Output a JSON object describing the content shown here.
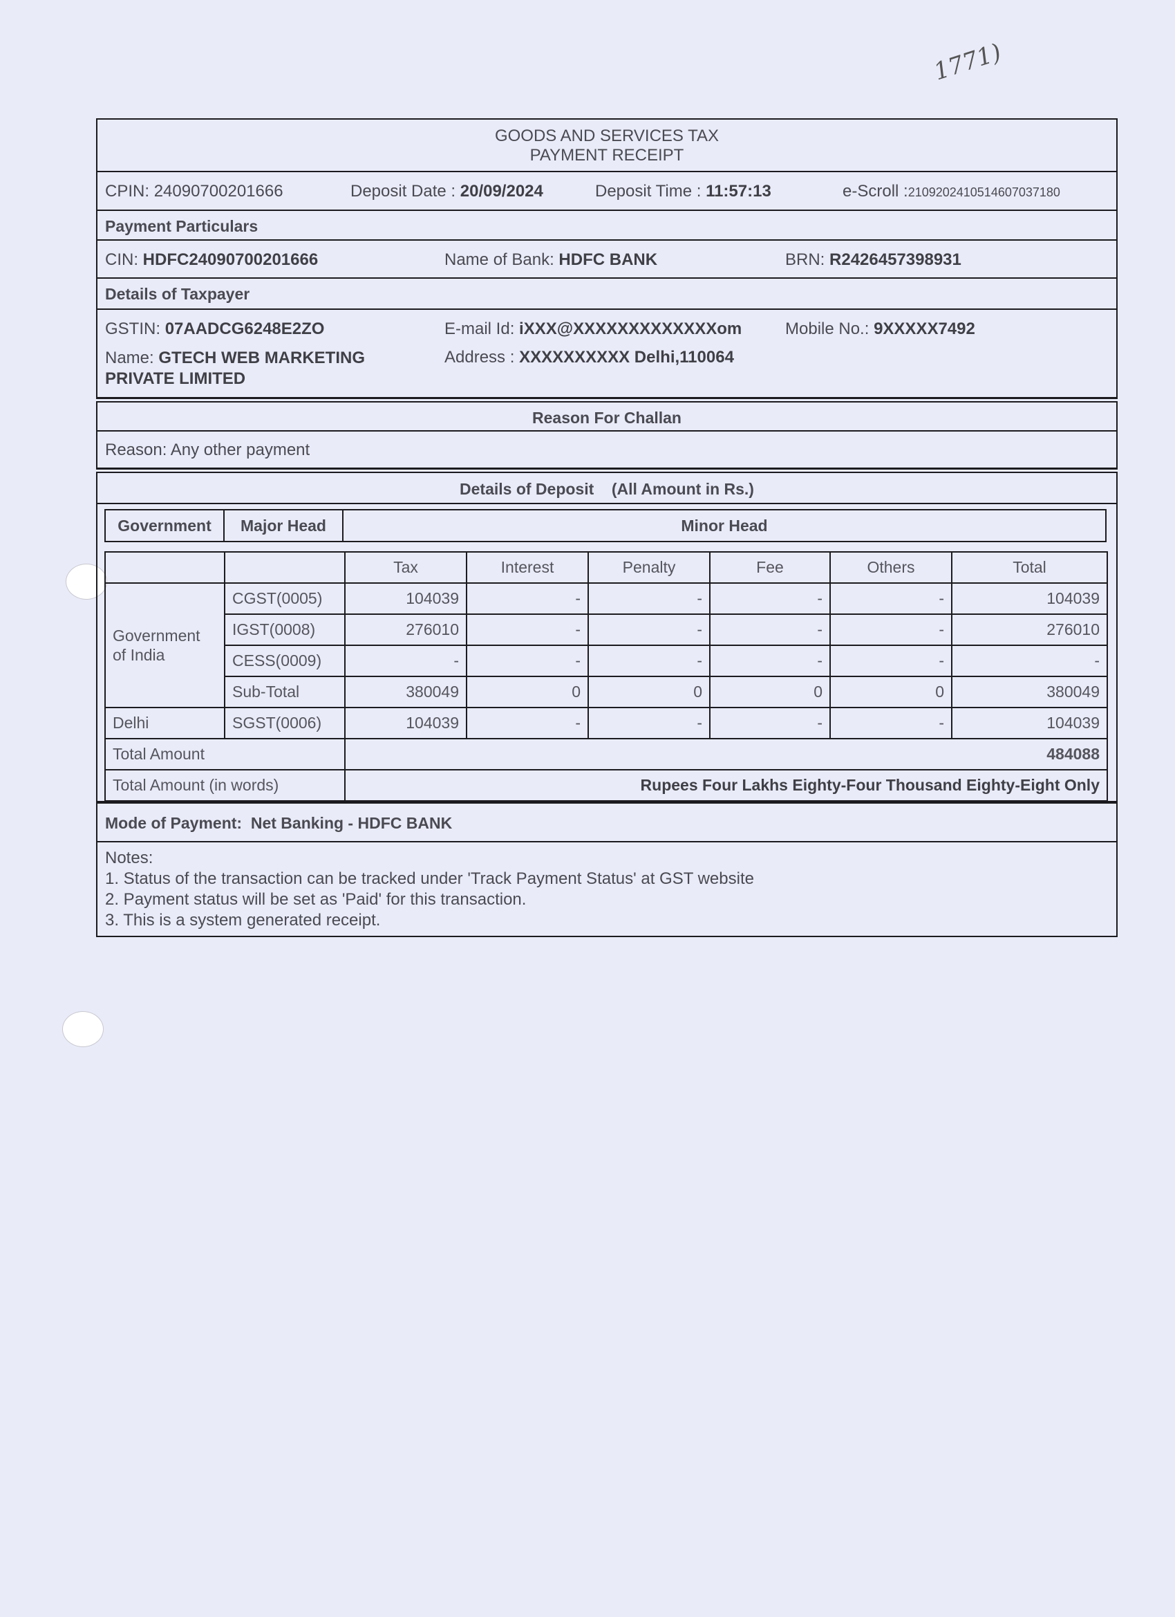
{
  "handwritten_note": "1771)",
  "title": {
    "line1": "GOODS AND SERVICES TAX",
    "line2": "PAYMENT RECEIPT"
  },
  "cpin": {
    "label": "CPIN:",
    "value": "24090700201666"
  },
  "deposit_date": {
    "label": "Deposit Date :",
    "value": "20/09/2024"
  },
  "deposit_time": {
    "label": "Deposit Time :",
    "value": "11:57:13"
  },
  "escroll": {
    "label": "e-Scroll :",
    "value": "2109202410514607037180"
  },
  "payment_particulars": {
    "heading": "Payment Particulars",
    "cin_label": "CIN:",
    "cin": "HDFC24090700201666",
    "bank_label": "Name of Bank:",
    "bank": "HDFC BANK",
    "brn_label": "BRN:",
    "brn": "R2426457398931"
  },
  "taxpayer": {
    "heading": "Details of Taxpayer",
    "gstin_label": "GSTIN:",
    "gstin": "07AADCG6248E2ZO",
    "email_label": "E-mail Id:",
    "email": "iXXX@XXXXXXXXXXXXXom",
    "mobile_label": "Mobile No.:",
    "mobile": "9XXXXX7492",
    "name_label": "Name:",
    "name_line1": "GTECH WEB MARKETING",
    "name_line2": "PRIVATE LIMITED",
    "address_label": "Address :",
    "address": "XXXXXXXXXX Delhi,110064"
  },
  "challan": {
    "heading": "Reason For Challan",
    "reason_label": "Reason:",
    "reason": "Any other payment"
  },
  "deposit": {
    "heading": "Details of Deposit",
    "note": "(All Amount in Rs.)",
    "head_cols": [
      "Government",
      "Major Head",
      "Minor Head"
    ],
    "columns": [
      "Tax",
      "Interest",
      "Penalty",
      "Fee",
      "Others",
      "Total"
    ],
    "gov_india": "Government of India",
    "rows": [
      {
        "major": "CGST(0005)",
        "values": [
          "104039",
          "-",
          "-",
          "-",
          "-",
          "104039"
        ]
      },
      {
        "major": "IGST(0008)",
        "values": [
          "276010",
          "-",
          "-",
          "-",
          "-",
          "276010"
        ]
      },
      {
        "major": "CESS(0009)",
        "values": [
          "-",
          "-",
          "-",
          "-",
          "-",
          "-"
        ]
      },
      {
        "major": "Sub-Total",
        "values": [
          "380049",
          "0",
          "0",
          "0",
          "0",
          "380049"
        ]
      }
    ],
    "delhi": {
      "gov": "Delhi",
      "major": "SGST(0006)",
      "values": [
        "104039",
        "-",
        "-",
        "-",
        "-",
        "104039"
      ]
    },
    "total_label": "Total Amount",
    "total": "484088",
    "words_label": "Total Amount (in words)",
    "words": "Rupees Four Lakhs  Eighty-Four Thousand Eighty-Eight Only"
  },
  "mode": {
    "label": "Mode of Payment:",
    "value": "Net Banking - HDFC BANK"
  },
  "notes": {
    "heading": "Notes:",
    "items": [
      "1. Status of the transaction can be tracked under 'Track Payment Status' at GST website",
      "2. Payment status will be set as 'Paid' for this transaction.",
      "3. This is a system generated receipt."
    ]
  }
}
